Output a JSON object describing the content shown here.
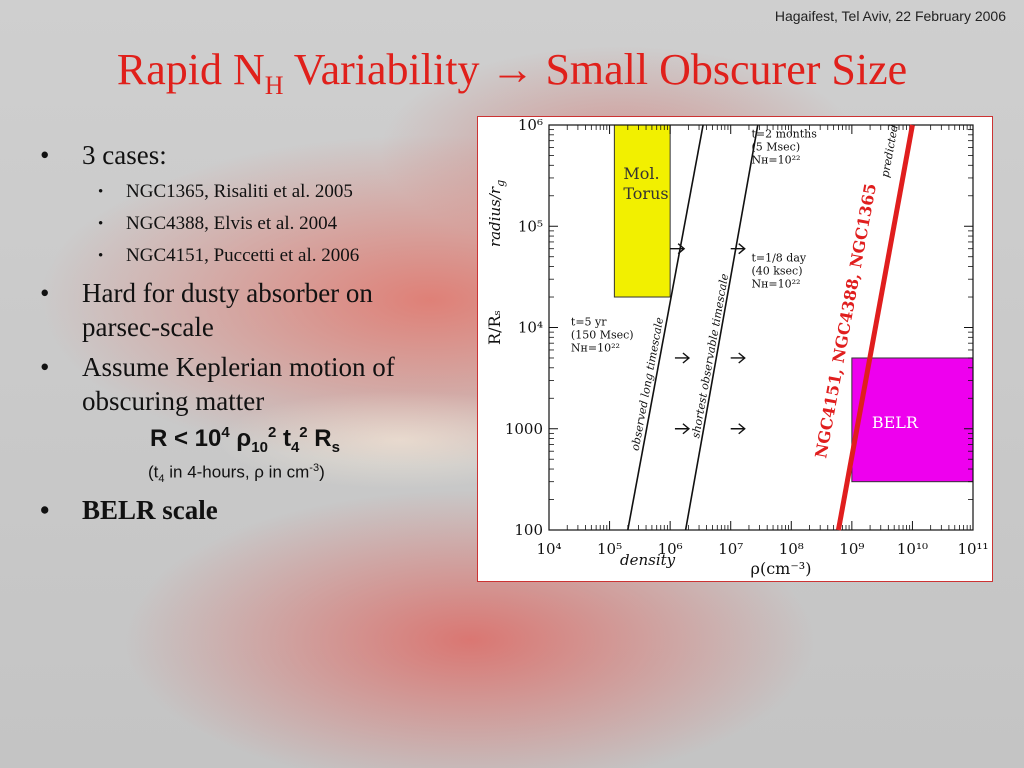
{
  "header_note": "Hagaifest, Tel Aviv, 22 February 2006",
  "title": {
    "pre": "Rapid N",
    "sub": "H",
    "post": " Variability → Small Obscurer Size"
  },
  "bullets": {
    "cases": "3 cases:",
    "case1": "NGC1365, Risaliti et al. 2005",
    "case2": "NGC4388, Elvis et al. 2004",
    "case3": "NGC4151, Puccetti et al. 2006",
    "dusty": "Hard for dusty absorber on parsec-scale",
    "kepler": "Assume Keplerian motion of obscuring matter",
    "belr": "BELR scale",
    "bullet_char": "•"
  },
  "formula": {
    "main": {
      "a": "R < 10",
      "a_sup": "4",
      "b": " ρ",
      "b_sub": "10",
      "b_sup": "2",
      "c": " t",
      "c_sub": "4",
      "c_sup": "2",
      "d": " R",
      "d_sub": "s"
    },
    "note": {
      "a": "(t",
      "a_sub": "4",
      "b": " in 4-hours, ρ in cm",
      "b_sup": "-3",
      "c": ")"
    }
  },
  "chart_data": {
    "type": "line",
    "x_scale": "log",
    "y_scale": "log",
    "xlim": [
      10000,
      100000000000
    ],
    "ylim": [
      100,
      1000000
    ],
    "xlabel": "ρ(cm⁻³)",
    "ylabel": "R/Rₛ",
    "x_ticks": [
      {
        "v": 10000,
        "label": "10⁴"
      },
      {
        "v": 100000,
        "label": "10⁵"
      },
      {
        "v": 1000000,
        "label": "10⁶"
      },
      {
        "v": 10000000,
        "label": "10⁷"
      },
      {
        "v": 100000000,
        "label": "10⁸"
      },
      {
        "v": 1000000000,
        "label": "10⁹"
      },
      {
        "v": 10000000000,
        "label": "10¹⁰"
      },
      {
        "v": 100000000000,
        "label": "10¹¹"
      }
    ],
    "y_ticks": [
      {
        "v": 100,
        "label": "100"
      },
      {
        "v": 1000,
        "label": "1000"
      },
      {
        "v": 10000,
        "label": "10⁴"
      },
      {
        "v": 100000,
        "label": "10⁵"
      },
      {
        "v": 1000000,
        "label": "10⁶"
      }
    ],
    "series": [
      {
        "name": "observed long timescale",
        "color": "#111111",
        "x": [
          200000,
          3500000
        ],
        "y": [
          100,
          1000000
        ]
      },
      {
        "name": "shortest observable timescale",
        "color": "#111111",
        "x": [
          1800000,
          28000000
        ],
        "y": [
          100,
          1000000
        ]
      },
      {
        "name": "predicted",
        "color": "#e01e1e",
        "x": [
          600000000,
          10000000000
        ],
        "y": [
          100,
          1000000
        ]
      }
    ],
    "regions": [
      {
        "label": "Mol.\nTorus",
        "color": "#f2f000",
        "x": [
          120000,
          1000000
        ],
        "y": [
          20000,
          1000000
        ]
      },
      {
        "label": "BELR",
        "color": "#ee00ee",
        "x": [
          1000000000,
          100000000000
        ],
        "y": [
          300,
          5000
        ]
      }
    ],
    "annotations": [
      {
        "lines": [
          "t=5 yr",
          "(150 Msec)",
          "Nʜ=10²²"
        ],
        "x": 23000,
        "y": 10500
      },
      {
        "lines": [
          "t=2 months",
          "(5 Msec)",
          "Nʜ=10²²"
        ],
        "x": 22000000,
        "y": 750000
      },
      {
        "lines": [
          "t=1/8 day",
          "(40 ksec)",
          "Nʜ=10²²"
        ],
        "x": 22000000,
        "y": 45000
      }
    ],
    "arrows": [
      {
        "x": 1000000,
        "y": 60000
      },
      {
        "x": 1200000,
        "y": 5000
      },
      {
        "x": 1200000,
        "y": 1000
      },
      {
        "x": 10000000,
        "y": 60000
      },
      {
        "x": 10000000,
        "y": 5000
      },
      {
        "x": 10000000,
        "y": 1000
      }
    ],
    "line_labels": [
      {
        "text": "observed long timescale",
        "x": 300000,
        "y": 600
      },
      {
        "text": "shortest observable timescale",
        "x": 3000000,
        "y": 800
      },
      {
        "text": "predicted",
        "x": 4000000000,
        "y": 300000
      }
    ],
    "overlay_labels": {
      "radius": "radius/r",
      "radius_sub": "g",
      "density": "density",
      "ngc": "NGC4151, NGC4388, NGC1365"
    }
  }
}
